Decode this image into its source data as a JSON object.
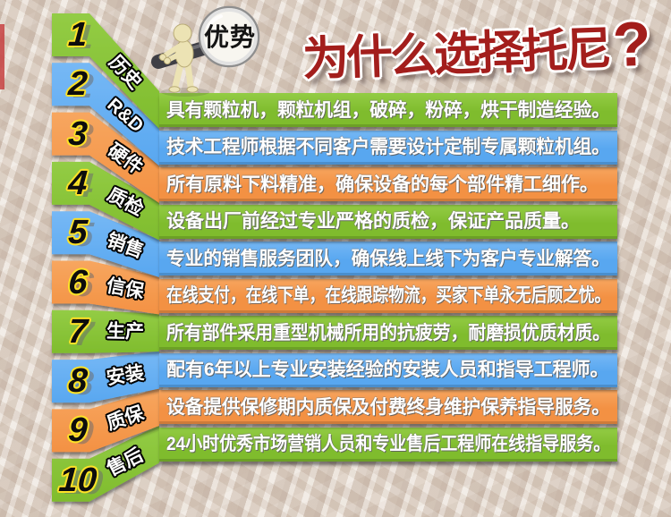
{
  "badge": {
    "label": "优势"
  },
  "title": {
    "text": "为什么选择托尼",
    "question_mark": "?",
    "color": "#A31E1C"
  },
  "colors": {
    "green": {
      "base": "#7FBC2D",
      "light": "#93CC45",
      "dark": "#3E660F"
    },
    "blue": {
      "base": "#58A7F0",
      "light": "#76B8F5",
      "dark": "#1E4E7F"
    },
    "orange": {
      "base": "#F39143",
      "light": "#F7A65F",
      "dark": "#8A4A14"
    }
  },
  "items": [
    {
      "number": "1",
      "label": "历史",
      "color": "green",
      "text": "具有颗粒机，颗粒机组，破碎，粉碎，烘干制造经验。"
    },
    {
      "number": "2",
      "label": "R&D",
      "color": "blue",
      "text": "技术工程师根据不同客户需要设计定制专属颗粒机组。"
    },
    {
      "number": "3",
      "label": "硬件",
      "color": "orange",
      "text": "所有原料下料精准，确保设备的每个部件精工细作。"
    },
    {
      "number": "4",
      "label": "质检",
      "color": "green",
      "text": "设备出厂前经过专业严格的质检，保证产品质量。"
    },
    {
      "number": "5",
      "label": "销售",
      "color": "blue",
      "text": "专业的销售服务团队，确保线上线下为客户专业解答。"
    },
    {
      "number": "6",
      "label": "信保",
      "color": "orange",
      "text": "在线支付，在线下单，在线跟踪物流，买家下单永无后顾之忧。"
    },
    {
      "number": "7",
      "label": "生产",
      "color": "green",
      "text": "所有部件采用重型机械所用的抗疲劳，耐磨损优质材质。"
    },
    {
      "number": "8",
      "label": "安装",
      "color": "blue",
      "text": "配有6年以上专业安装经验的安装人员和指导工程师。"
    },
    {
      "number": "9",
      "label": "质保",
      "color": "orange",
      "text": "设备提供保修期内质保及付费终身维护保养指导服务。"
    },
    {
      "number": "10",
      "label": "售后",
      "color": "green",
      "text": "24小时优秀市场营销人员和专业售后工程师在线指导服务。"
    }
  ]
}
